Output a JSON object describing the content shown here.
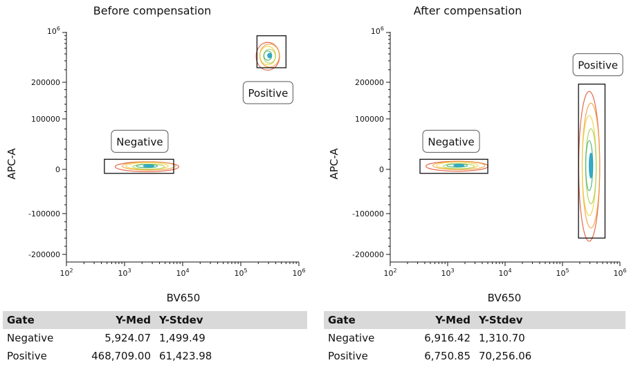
{
  "panels": [
    {
      "title": "Before compensation",
      "xlabel": "BV650",
      "ylabel": "APC-A",
      "table": {
        "headers": [
          "Gate",
          "Y-Med",
          "Y-Stdev"
        ],
        "rows": [
          [
            "Negative",
            "5,924.07",
            "1,499.49"
          ],
          [
            "Positive",
            "468,709.00",
            "61,423.98"
          ]
        ]
      }
    },
    {
      "title": "After compensation",
      "xlabel": "BV650",
      "ylabel": "APC-A",
      "table": {
        "headers": [
          "Gate",
          "Y-Med",
          "Y-Stdev"
        ],
        "rows": [
          [
            "Negative",
            "6,916.42",
            "1,310.70"
          ],
          [
            "Positive",
            "6,750.85",
            "70,256.06"
          ]
        ]
      }
    }
  ],
  "chart_data": [
    {
      "type": "scatter",
      "subtype": "contour",
      "title": "Before compensation",
      "xlabel": "BV650",
      "ylabel": "APC-A",
      "x_scale": "log",
      "y_scale": "biexponential",
      "xlim": [
        100,
        1000000
      ],
      "x_ticks": [
        "10^2",
        "10^3",
        "10^4",
        "10^5",
        "10^6"
      ],
      "y_ticks": [
        "10^6",
        "200000",
        "100000",
        "0",
        "-100000",
        "-200000"
      ],
      "gates": [
        {
          "label": "Negative",
          "x_range": [
            450,
            7000
          ],
          "y_range": [
            -9000,
            20000
          ],
          "center_x": 2500,
          "center_y": 5924.07
        },
        {
          "label": "Positive",
          "x_range": [
            190000,
            600000
          ],
          "y_range": [
            320000,
            900000
          ],
          "center_x": 300000,
          "center_y": 468709
        }
      ],
      "contour_colors": [
        "#e05a3a",
        "#f0a040",
        "#f0d040",
        "#a8d050",
        "#40b070",
        "#20a0c0"
      ]
    },
    {
      "type": "scatter",
      "subtype": "contour",
      "title": "After compensation",
      "xlabel": "BV650",
      "ylabel": "APC-A",
      "x_scale": "log",
      "y_scale": "biexponential",
      "xlim": [
        100,
        1000000
      ],
      "x_ticks": [
        "10^2",
        "10^3",
        "10^4",
        "10^5",
        "10^6"
      ],
      "y_ticks": [
        "10^6",
        "200000",
        "100000",
        "0",
        "-100000",
        "-200000"
      ],
      "gates": [
        {
          "label": "Negative",
          "x_range": [
            330,
            5000
          ],
          "y_range": [
            -9000,
            20000
          ],
          "center_x": 1500,
          "center_y": 6916.42
        },
        {
          "label": "Positive",
          "x_range": [
            190000,
            550000
          ],
          "y_range": [
            -160000,
            195000
          ],
          "center_x": 300000,
          "center_y": 6750.85
        }
      ],
      "contour_colors": [
        "#e05a3a",
        "#f0a040",
        "#f0d040",
        "#a8d050",
        "#40b070",
        "#20a0c0"
      ]
    }
  ]
}
